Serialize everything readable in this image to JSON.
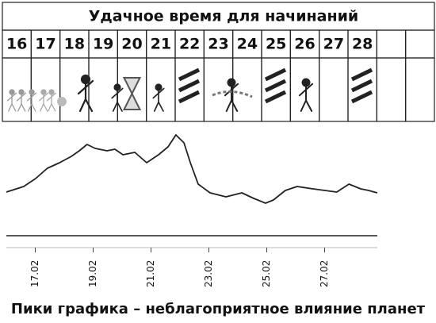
{
  "calendar": {
    "title": "Удачное время для начинаний",
    "days": [
      "16",
      "17",
      "18",
      "19",
      "20",
      "21",
      "22",
      "23",
      "24",
      "25",
      "26",
      "27",
      "28"
    ]
  },
  "chart_data": {
    "type": "line",
    "x": [
      16.0,
      16.6,
      17.01,
      17.42,
      17.84,
      18.25,
      18.52,
      18.79,
      19.07,
      19.48,
      19.75,
      20.03,
      20.44,
      20.85,
      21.26,
      21.59,
      21.86,
      22.14,
      22.36,
      22.63,
      23.04,
      23.59,
      24.14,
      24.55,
      24.96,
      25.23,
      25.64,
      26.05,
      26.6,
      27.01,
      27.42,
      27.84,
      28.25,
      28.52,
      28.82
    ],
    "series": [
      {
        "name": "",
        "color": "#222222",
        "values": [
          55,
          62,
          72,
          85,
          92,
          100,
          107,
          115,
          110,
          107,
          109,
          102,
          105,
          92,
          102,
          112,
          127,
          117,
          92,
          65,
          54,
          49,
          54,
          47,
          41,
          45,
          57,
          62,
          59,
          57,
          55,
          65,
          59,
          57,
          54
        ]
      }
    ],
    "xlim": [
      16,
      29
    ],
    "ylim": [
      0,
      150
    ],
    "xticks": [
      {
        "value": 17,
        "label": "17.02"
      },
      {
        "value": 19,
        "label": "19.02"
      },
      {
        "value": 21,
        "label": "21.02"
      },
      {
        "value": 23,
        "label": "23.02"
      },
      {
        "value": 25,
        "label": "25.02"
      },
      {
        "value": 27,
        "label": "27.02"
      }
    ],
    "caption": "Пики графика – неблагоприятное влияние планет"
  }
}
